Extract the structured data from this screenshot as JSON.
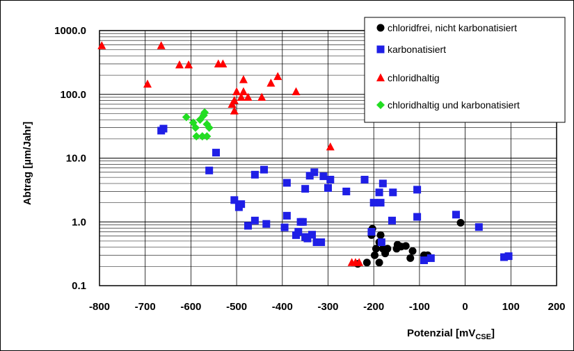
{
  "chart_data": {
    "type": "scatter",
    "title": "",
    "xlabel": "Potenzial [mV",
    "xlabel_sub": "CSE",
    "xlabel_close": "]",
    "ylabel": "Abtrag [µm/Jahr]",
    "x_scale": "linear",
    "y_scale": "log",
    "xlim": [
      -800,
      200
    ],
    "ylim": [
      0.1,
      1000
    ],
    "x_ticks": [
      -800,
      -700,
      -600,
      -500,
      -400,
      -300,
      -200,
      -100,
      0,
      100,
      200
    ],
    "x_tick_labels": [
      "-800",
      "-700",
      "-600",
      "-500",
      "-400",
      "-300",
      "-200",
      "-100",
      "0",
      "100",
      "200"
    ],
    "y_ticks": [
      0.1,
      1,
      10,
      100,
      1000
    ],
    "y_tick_labels": [
      "0.1",
      "1.0",
      "10.0",
      "100.0",
      "1000.0"
    ],
    "grid": true,
    "legend_position": "top-right",
    "series": [
      {
        "name": "chloridfrei, nicht karbonatisiert",
        "marker": "circle",
        "color": "#000000",
        "points": [
          [
            -235,
            0.22
          ],
          [
            -215,
            0.23
          ],
          [
            -205,
            0.62
          ],
          [
            -203,
            0.78
          ],
          [
            -198,
            0.3
          ],
          [
            -195,
            0.38
          ],
          [
            -188,
            0.23
          ],
          [
            -188,
            0.48
          ],
          [
            -185,
            0.62
          ],
          [
            -180,
            0.38
          ],
          [
            -175,
            0.32
          ],
          [
            -170,
            0.38
          ],
          [
            -150,
            0.38
          ],
          [
            -148,
            0.44
          ],
          [
            -140,
            0.41
          ],
          [
            -130,
            0.42
          ],
          [
            -120,
            0.27
          ],
          [
            -115,
            0.35
          ],
          [
            -90,
            0.3
          ],
          [
            -82,
            0.3
          ],
          [
            -80,
            0.27
          ],
          [
            -10,
            0.97
          ]
        ]
      },
      {
        "name": "karbonatisiert",
        "marker": "square",
        "color": "#1f1fe6",
        "points": [
          [
            -665,
            27
          ],
          [
            -660,
            29
          ],
          [
            -545,
            12.2
          ],
          [
            -560,
            6.4
          ],
          [
            -505,
            2.2
          ],
          [
            -495,
            1.7
          ],
          [
            -490,
            1.9
          ],
          [
            -475,
            0.87
          ],
          [
            -460,
            1.05
          ],
          [
            -460,
            5.5
          ],
          [
            -440,
            6.6
          ],
          [
            -435,
            0.93
          ],
          [
            -395,
            0.82
          ],
          [
            -390,
            4.1
          ],
          [
            -390,
            1.25
          ],
          [
            -370,
            0.62
          ],
          [
            -365,
            0.7
          ],
          [
            -360,
            1.0
          ],
          [
            -355,
            1.0
          ],
          [
            -350,
            0.58
          ],
          [
            -350,
            3.3
          ],
          [
            -345,
            0.55
          ],
          [
            -340,
            5.3
          ],
          [
            -335,
            0.63
          ],
          [
            -330,
            6.0
          ],
          [
            -325,
            0.48
          ],
          [
            -315,
            0.48
          ],
          [
            -310,
            5.2
          ],
          [
            -300,
            3.4
          ],
          [
            -295,
            4.6
          ],
          [
            -260,
            3.0
          ],
          [
            -220,
            4.6
          ],
          [
            -205,
            0.7
          ],
          [
            -200,
            2.0
          ],
          [
            -188,
            2.9
          ],
          [
            -185,
            2.0
          ],
          [
            -183,
            0.48
          ],
          [
            -180,
            4.0
          ],
          [
            -160,
            1.05
          ],
          [
            -158,
            2.9
          ],
          [
            -105,
            3.2
          ],
          [
            -105,
            1.2
          ],
          [
            -90,
            0.25
          ],
          [
            -75,
            0.27
          ],
          [
            -20,
            1.3
          ],
          [
            30,
            0.83
          ],
          [
            85,
            0.28
          ],
          [
            95,
            0.29
          ]
        ]
      },
      {
        "name": "chloridhaltig",
        "marker": "triangle",
        "color": "#ff0000",
        "points": [
          [
            -795,
            580
          ],
          [
            -695,
            145
          ],
          [
            -665,
            580
          ],
          [
            -625,
            290
          ],
          [
            -605,
            290
          ],
          [
            -540,
            300
          ],
          [
            -530,
            300
          ],
          [
            -510,
            70
          ],
          [
            -505,
            55
          ],
          [
            -505,
            80
          ],
          [
            -500,
            110
          ],
          [
            -490,
            90
          ],
          [
            -485,
            110
          ],
          [
            -485,
            170
          ],
          [
            -475,
            90
          ],
          [
            -445,
            90
          ],
          [
            -425,
            150
          ],
          [
            -410,
            190
          ],
          [
            -370,
            110
          ],
          [
            -295,
            15
          ],
          [
            -248,
            0.23
          ],
          [
            -240,
            0.23
          ],
          [
            -232,
            0.23
          ]
        ]
      },
      {
        "name": "chloridhaltig und karbonatisiert",
        "marker": "diamond",
        "color": "#22dd22",
        "points": [
          [
            -610,
            44
          ],
          [
            -595,
            36
          ],
          [
            -590,
            30
          ],
          [
            -588,
            22
          ],
          [
            -580,
            40
          ],
          [
            -575,
            22
          ],
          [
            -572,
            47
          ],
          [
            -570,
            52
          ],
          [
            -565,
            34
          ],
          [
            -565,
            22
          ],
          [
            -560,
            30
          ]
        ]
      }
    ]
  }
}
